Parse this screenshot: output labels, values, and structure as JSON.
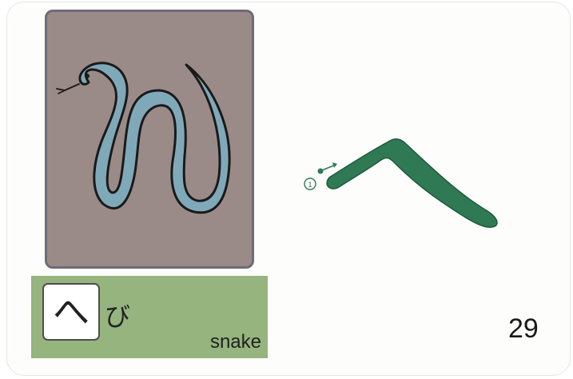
{
  "card": {
    "kana": "へ",
    "reading": "び",
    "english": "snake",
    "page_number": "29",
    "stroke_number": "①"
  },
  "picture": {
    "subject": "snake",
    "icon": "snake-icon"
  },
  "colors": {
    "picture_background": "#9a8b88",
    "snake_body": "#7fa9b9",
    "stroke_green": "#2f7a55",
    "label_bar": "#95b47e"
  }
}
